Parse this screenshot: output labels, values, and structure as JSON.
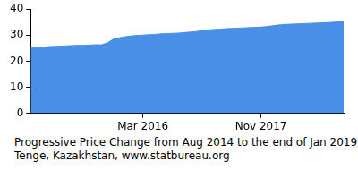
{
  "chart_data": {
    "type": "area",
    "title": "Progressive Price Change from Aug 2014 to the end of Jan 2019,",
    "subtitle": "Tenge, Kazakhstan, www.statbureau.org",
    "categories": [
      null,
      null,
      null,
      null,
      null,
      null,
      null,
      null,
      null,
      null,
      null,
      null,
      null,
      null,
      null,
      null,
      null,
      null,
      null,
      "Mar 2016",
      null,
      null,
      null,
      null,
      null,
      null,
      null,
      null,
      null,
      null,
      null,
      null,
      null,
      null,
      null,
      null,
      null,
      null,
      null,
      "Nov 2017",
      null,
      null,
      null,
      null,
      null,
      null,
      null,
      null,
      null,
      null,
      null,
      null,
      null,
      null
    ],
    "values": [
      25.0,
      25.2,
      25.4,
      25.6,
      25.7,
      25.8,
      25.9,
      26.0,
      26.1,
      26.1,
      26.2,
      26.3,
      26.3,
      27.0,
      28.5,
      29.0,
      29.4,
      29.7,
      29.9,
      30.0,
      30.2,
      30.3,
      30.5,
      30.6,
      30.7,
      30.8,
      31.0,
      31.2,
      31.4,
      31.7,
      32.0,
      32.2,
      32.3,
      32.5,
      32.6,
      32.7,
      32.8,
      32.9,
      33.0,
      33.1,
      33.3,
      33.6,
      33.9,
      34.1,
      34.2,
      34.3,
      34.4,
      34.5,
      34.6,
      34.7,
      34.8,
      34.9,
      35.1,
      35.4
    ],
    "color": "#4a8fe7",
    "ylim": [
      0,
      40
    ],
    "yticks": [
      0,
      10,
      20,
      30,
      40
    ],
    "grid": false
  }
}
